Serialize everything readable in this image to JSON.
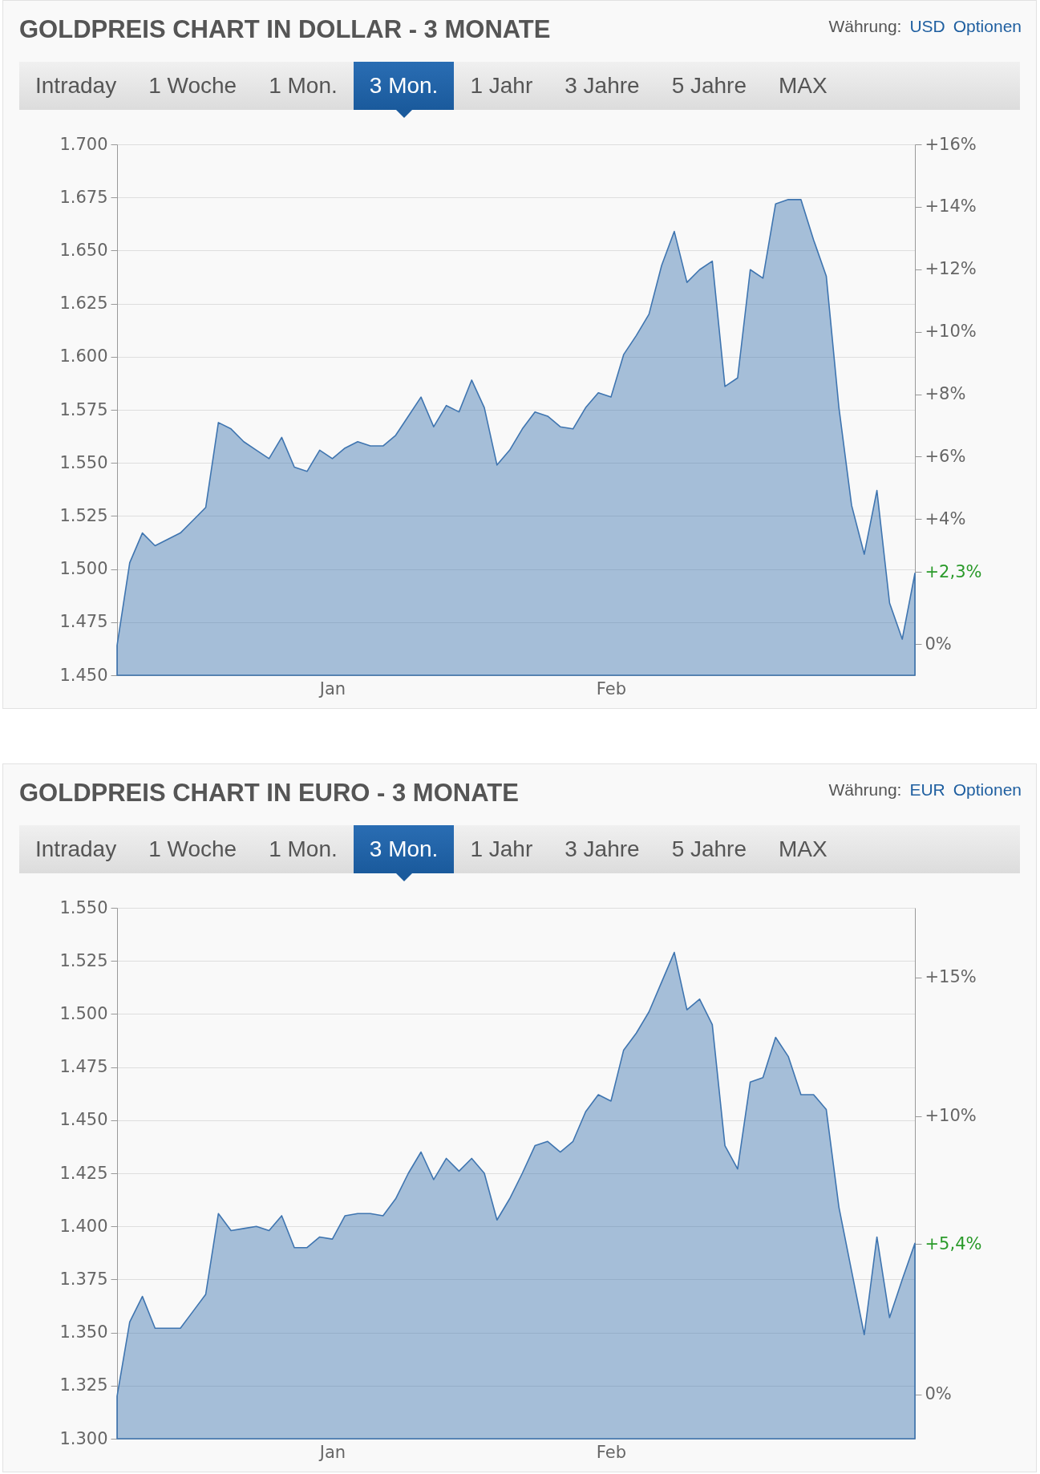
{
  "chart_data": [
    {
      "type": "area",
      "title": "GOLDPREIS CHART IN DOLLAR - 3 MONATE",
      "annotations": [
        "Währung:",
        "USD",
        "Optionen",
        "Intraday",
        "1 Woche",
        "1 Mon.",
        "3 Mon.",
        "1 Jahr",
        "3 Jahre",
        "5 Jahre",
        "MAX"
      ],
      "categories": [
        null,
        null,
        null,
        null,
        null,
        null,
        null,
        null,
        null,
        null,
        null,
        null,
        null,
        null,
        null,
        null,
        null,
        "Jan",
        null,
        null,
        null,
        null,
        null,
        null,
        null,
        null,
        null,
        null,
        null,
        null,
        null,
        null,
        null,
        null,
        null,
        null,
        null,
        null,
        null,
        "Feb",
        null,
        null,
        null,
        null,
        null,
        null,
        null,
        null,
        null,
        null,
        null,
        null,
        null,
        null,
        null,
        null,
        null,
        null,
        null,
        null,
        null,
        null,
        null,
        null
      ],
      "series": [
        {
          "color": "#3f75b0",
          "values": [
            1464,
            1503,
            1517,
            1511,
            1514,
            1517,
            1523,
            1529,
            1569,
            1566,
            1560,
            1556,
            1552,
            1562,
            1548,
            1546,
            1556,
            1552,
            1557,
            1560,
            1558,
            1558,
            1563,
            1572,
            1581,
            1567,
            1577,
            1574,
            1589,
            1576,
            1549,
            1556,
            1566,
            1574,
            1572,
            1567,
            1566,
            1576,
            1583,
            1581,
            1601,
            1610,
            1620,
            1643,
            1659,
            1635,
            1641,
            1645,
            1586,
            1590,
            1641,
            1637,
            1672,
            1674,
            1674,
            1655,
            1638,
            1576,
            1530,
            1507,
            1537,
            1484,
            1467,
            1498
          ]
        }
      ],
      "ylim": [
        1450,
        1700
      ],
      "yticks": [
        {
          "value": 1450,
          "label": "1.450"
        },
        {
          "value": 1475,
          "label": "1.475"
        },
        {
          "value": 1500,
          "label": "1.500"
        },
        {
          "value": 1525,
          "label": "1.525"
        },
        {
          "value": 1550,
          "label": "1.550"
        },
        {
          "value": 1575,
          "label": "1.575"
        },
        {
          "value": 1600,
          "label": "1.600"
        },
        {
          "value": 1625,
          "label": "1.625"
        },
        {
          "value": 1650,
          "label": "1.650"
        },
        {
          "value": 1675,
          "label": "1.675"
        },
        {
          "value": 1700,
          "label": "1.700"
        }
      ],
      "y2lim": [
        -1,
        16
      ],
      "y2ticks": [
        {
          "value": 0,
          "label": "0%"
        },
        {
          "value": 2.3,
          "label": "+2,3%"
        },
        {
          "value": 4,
          "label": "+4%"
        },
        {
          "value": 6,
          "label": "+6%"
        },
        {
          "value": 8,
          "label": "+8%"
        },
        {
          "value": 10,
          "label": "+10%"
        },
        {
          "value": 12,
          "label": "+12%"
        },
        {
          "value": 14,
          "label": "+14%"
        },
        {
          "value": 16,
          "label": "+16%"
        }
      ],
      "grid": "y"
    },
    {
      "type": "area",
      "title": "GOLDPREIS CHART IN EURO - 3 MONATE",
      "annotations": [
        "Währung:",
        "EUR",
        "Optionen",
        "Intraday",
        "1 Woche",
        "1 Mon.",
        "3 Mon.",
        "1 Jahr",
        "3 Jahre",
        "5 Jahre",
        "MAX"
      ],
      "categories": [
        null,
        null,
        null,
        null,
        null,
        null,
        null,
        null,
        null,
        null,
        null,
        null,
        null,
        null,
        null,
        null,
        null,
        "Jan",
        null,
        null,
        null,
        null,
        null,
        null,
        null,
        null,
        null,
        null,
        null,
        null,
        null,
        null,
        null,
        null,
        null,
        null,
        null,
        null,
        null,
        "Feb",
        null,
        null,
        null,
        null,
        null,
        null,
        null,
        null,
        null,
        null,
        null,
        null,
        null,
        null,
        null,
        null,
        null,
        null,
        null,
        null,
        null,
        null,
        null,
        null
      ],
      "series": [
        {
          "color": "#3f75b0",
          "values": [
            1320,
            1355,
            1367,
            1352,
            1352,
            1352,
            1360,
            1368,
            1406,
            1398,
            1399,
            1400,
            1398,
            1405,
            1390,
            1390,
            1395,
            1394,
            1405,
            1406,
            1406,
            1405,
            1413,
            1425,
            1435,
            1422,
            1432,
            1426,
            1432,
            1425,
            1403,
            1413,
            1425,
            1438,
            1440,
            1435,
            1440,
            1454,
            1462,
            1459,
            1483,
            1491,
            1501,
            1515,
            1529,
            1502,
            1507,
            1495,
            1438,
            1427,
            1468,
            1470,
            1489,
            1480,
            1462,
            1462,
            1455,
            1409,
            1379,
            1349,
            1395,
            1357,
            1375,
            1392
          ]
        }
      ],
      "ylim": [
        1300,
        1550
      ],
      "yticks": [
        {
          "value": 1300,
          "label": "1.300"
        },
        {
          "value": 1325,
          "label": "1.325"
        },
        {
          "value": 1350,
          "label": "1.350"
        },
        {
          "value": 1375,
          "label": "1.375"
        },
        {
          "value": 1400,
          "label": "1.400"
        },
        {
          "value": 1425,
          "label": "1.425"
        },
        {
          "value": 1450,
          "label": "1.450"
        },
        {
          "value": 1475,
          "label": "1.475"
        },
        {
          "value": 1500,
          "label": "1.500"
        },
        {
          "value": 1525,
          "label": "1.525"
        },
        {
          "value": 1550,
          "label": "1.550"
        }
      ],
      "y2lim": [
        -1.6,
        17.5
      ],
      "y2ticks": [
        {
          "value": 0,
          "label": "0%"
        },
        {
          "value": 5.4,
          "label": "+5,4%"
        },
        {
          "value": 10,
          "label": "+10%"
        },
        {
          "value": 15,
          "label": "+15%"
        }
      ],
      "grid": "y"
    }
  ]
}
